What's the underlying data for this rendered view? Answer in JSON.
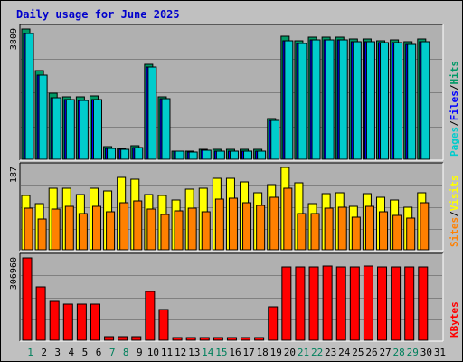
{
  "chart_data": {
    "type": "bar",
    "title": "Daily usage for June 2025",
    "colors": {
      "title": "#0000cc",
      "background": "#c0c0c0",
      "plot_background": "#b0b0b0",
      "gridline": "#808080",
      "hits": "#009966",
      "files": "#0000ff",
      "pages": "#00cccc",
      "visits": "#ffff00",
      "sites": "#ff8000",
      "kbytes": "#ff0000",
      "weekend_day": "#00805c"
    },
    "days": [
      "1",
      "2",
      "3",
      "4",
      "5",
      "6",
      "7",
      "8",
      "9",
      "10",
      "11",
      "12",
      "13",
      "14",
      "15",
      "16",
      "17",
      "18",
      "19",
      "20",
      "21",
      "22",
      "23",
      "24",
      "25",
      "26",
      "27",
      "28",
      "29",
      "30",
      "31"
    ],
    "weekend_days": [
      "1",
      "7",
      "8",
      "14",
      "15",
      "21",
      "22",
      "28",
      "29"
    ],
    "panels": [
      {
        "id": "top",
        "max_label": "3809",
        "max": 3809,
        "series": [
          {
            "name": "Hits",
            "color": "#009966",
            "values": [
              3809,
              2600,
              1930,
              1830,
              1830,
              1860,
              370,
              320,
              400,
              2780,
              1820,
              250,
              240,
              300,
              290,
              290,
              300,
              300,
              1190,
              3590,
              3460,
              3580,
              3580,
              3580,
              3510,
              3520,
              3460,
              3480,
              3450,
              3520,
              0
            ]
          },
          {
            "name": "Files",
            "color": "#0000ff",
            "values": [
              3680,
              2470,
              1790,
              1740,
              1720,
              1740,
              320,
              290,
              340,
              2700,
              1770,
              230,
              220,
              260,
              240,
              240,
              250,
              250,
              1140,
              3460,
              3380,
              3480,
              3480,
              3480,
              3450,
              3450,
              3400,
              3400,
              3350,
              3430,
              0
            ]
          },
          {
            "name": "Pages",
            "color": "#00cccc",
            "values": [
              3680,
              2470,
              1790,
              1740,
              1720,
              1740,
              320,
              290,
              340,
              2700,
              1770,
              230,
              220,
              260,
              240,
              240,
              250,
              250,
              1140,
              3460,
              3380,
              3480,
              3480,
              3480,
              3450,
              3450,
              3400,
              3400,
              3350,
              3430,
              0
            ]
          }
        ],
        "legend": [
          "Pages",
          "Files",
          "Hits"
        ]
      },
      {
        "id": "mid",
        "max_label": "187",
        "max": 187,
        "series": [
          {
            "name": "Visits",
            "color": "#ffff00",
            "values": [
              123,
              104,
              140,
              140,
              126,
              140,
              134,
              165,
              160,
              126,
              123,
              112,
              137,
              140,
              162,
              162,
              154,
              130,
              147,
              187,
              152,
              104,
              128,
              129,
              98,
              128,
              120,
              113,
              97,
              129,
              0
            ]
          },
          {
            "name": "Sites",
            "color": "#ff8000",
            "values": [
              95,
              70,
              92,
              99,
              83,
              99,
              86,
              106,
              110,
              92,
              80,
              89,
              94,
              86,
              116,
              118,
              107,
              100,
              119,
              140,
              82,
              82,
              95,
              97,
              73,
              98,
              86,
              78,
              71,
              107,
              0
            ]
          }
        ],
        "legend": [
          "Sites",
          "Visits"
        ]
      },
      {
        "id": "bot",
        "max_label": "306960",
        "max": 306960,
        "series": [
          {
            "name": "KBytes",
            "color": "#ff0000",
            "values": [
              306960,
              200000,
              145000,
              135000,
              135000,
              135000,
              14000,
              12000,
              14000,
              182000,
              116000,
              10000,
              10000,
              10000,
              10000,
              10000,
              10000,
              10000,
              124000,
              272000,
              272000,
              274000,
              276000,
              274000,
              274000,
              276000,
              274000,
              272000,
              272000,
              272000,
              0
            ]
          }
        ],
        "legend": [
          "KBytes"
        ]
      }
    ]
  }
}
